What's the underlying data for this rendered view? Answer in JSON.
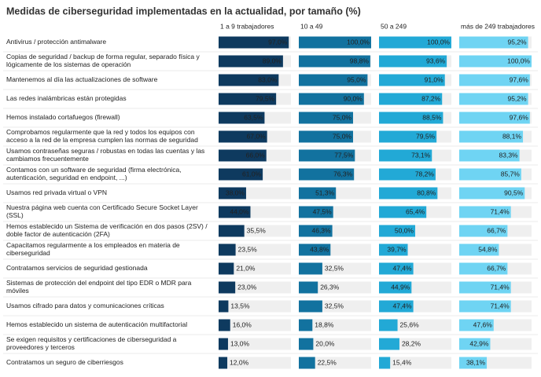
{
  "chart_data": {
    "type": "bar",
    "orientation": "horizontal",
    "panels": "small-multiples",
    "title": "Medidas de ciberseguridad implementadas en la actualidad, por tamaño (%)",
    "xlim": [
      0,
      100
    ],
    "categories": [
      "Antivirus / protección antimalware",
      "Copias de seguridad / backup de forma regular, separado física y lógicamente de los sistemas de operación",
      "Mantenemos al día las actualizaciones de software",
      "Las redes inalámbricas están protegidas",
      "Hemos instalado cortafuegos (firewall)",
      "Comprobamos regularmente que la red y todos los equipos con acceso a la red de la empresa cumplen las normas de seguridad",
      "Usamos contraseñas seguras / robustas en todas las cuentas y las cambiamos frecuentemente",
      "Contamos con un software de seguridad (firma electrónica, autenticación, seguridad en endpoint, ...)",
      "Usamos red privada virtual o VPN",
      "Nuestra página web cuenta con Certificado Secure Socket Layer (SSL)",
      "Hemos establecido un Sistema de verificación en dos pasos (2SV) / doble factor de autenticación (2FA)",
      "Capacitamos regularmente a los empleados en materia de ciberseguridad",
      "Contratamos servicios de seguridad gestionada",
      "Sistemas de protección del endpoint del tipo EDR o MDR para móviles",
      "Usamos cifrado para datos y comunicaciones críticas",
      "Hemos establecido un sistema de autenticación multifactorial",
      "Se exigen requisitos y certificaciones de ciberseguridad a proveedores y terceros",
      "Contratamos un seguro de ciberriesgos"
    ],
    "series": [
      {
        "name": "1 a 9 trabajadores",
        "color": "#0e3a5f",
        "values": [
          97.0,
          89.0,
          83.0,
          79.5,
          63.5,
          67.0,
          66.0,
          61.0,
          38.0,
          44.0,
          35.5,
          23.5,
          21.0,
          23.0,
          13.5,
          16.0,
          13.0,
          12.0
        ],
        "value_labels": [
          "97,0%",
          "89,0%",
          "83,0%",
          "79,5%",
          "63,5%",
          "67,0%",
          "66,0%",
          "61,0%",
          "38,0%",
          "44,0%",
          "35,5%",
          "23,5%",
          "21,0%",
          "23,0%",
          "13,5%",
          "16,0%",
          "13,0%",
          "12,0%"
        ]
      },
      {
        "name": "10 a 49",
        "color": "#12729f",
        "values": [
          100.0,
          98.8,
          95.0,
          90.0,
          75.0,
          75.0,
          77.5,
          76.3,
          51.3,
          47.5,
          46.3,
          43.8,
          32.5,
          26.3,
          32.5,
          18.8,
          20.0,
          22.5
        ],
        "value_labels": [
          "100,0%",
          "98,8%",
          "95,0%",
          "90,0%",
          "75,0%",
          "75,0%",
          "77,5%",
          "76,3%",
          "51,3%",
          "47,5%",
          "46,3%",
          "43,8%",
          "32,5%",
          "26,3%",
          "32,5%",
          "18,8%",
          "20,0%",
          "22,5%"
        ]
      },
      {
        "name": "50 a 249",
        "color": "#22a9d6",
        "values": [
          100.0,
          93.6,
          91.0,
          87.2,
          88.5,
          79.5,
          73.1,
          78.2,
          80.8,
          65.4,
          50.0,
          39.7,
          47.4,
          44.9,
          47.4,
          25.6,
          28.2,
          15.4
        ],
        "value_labels": [
          "100,0%",
          "93,6%",
          "91,0%",
          "87,2%",
          "88,5%",
          "79,5%",
          "73,1%",
          "78,2%",
          "80,8%",
          "65,4%",
          "50,0%",
          "39,7%",
          "47,4%",
          "44,9%",
          "47,4%",
          "25,6%",
          "28,2%",
          "15,4%"
        ]
      },
      {
        "name": "más de 249 trabajadores",
        "color": "#6fd4f3",
        "values": [
          95.2,
          100.0,
          97.6,
          95.2,
          97.6,
          88.1,
          83.3,
          85.7,
          90.5,
          71.4,
          66.7,
          54.8,
          66.7,
          71.4,
          71.4,
          47.6,
          42.9,
          38.1
        ],
        "value_labels": [
          "95,2%",
          "100,0%",
          "97,6%",
          "95,2%",
          "97,6%",
          "88,1%",
          "83,3%",
          "85,7%",
          "90,5%",
          "71,4%",
          "66,7%",
          "54,8%",
          "66,7%",
          "71,4%",
          "71,4%",
          "47,6%",
          "42,9%",
          "38,1%"
        ]
      }
    ]
  }
}
